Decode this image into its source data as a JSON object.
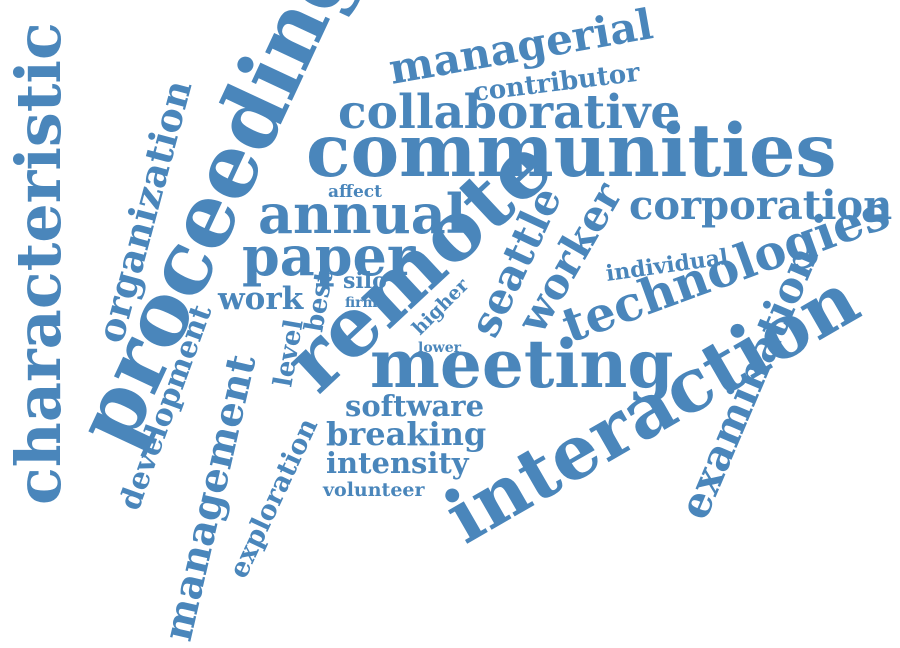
{
  "color": "#4a86bb",
  "words": [
    "characteristic",
    "proceeding",
    "organization",
    "managerial",
    "contributor",
    "collaborative",
    "communities",
    "affect",
    "annual",
    "paper",
    "corporation",
    "remote",
    "seattle",
    "worker",
    "individual",
    "technologies",
    "work",
    "best",
    "silo",
    "firm",
    "higher",
    "lower",
    "level",
    "development",
    "management",
    "meeting",
    "interaction",
    "examination",
    "software",
    "breaking",
    "exploration",
    "intensity",
    "volunteer"
  ]
}
